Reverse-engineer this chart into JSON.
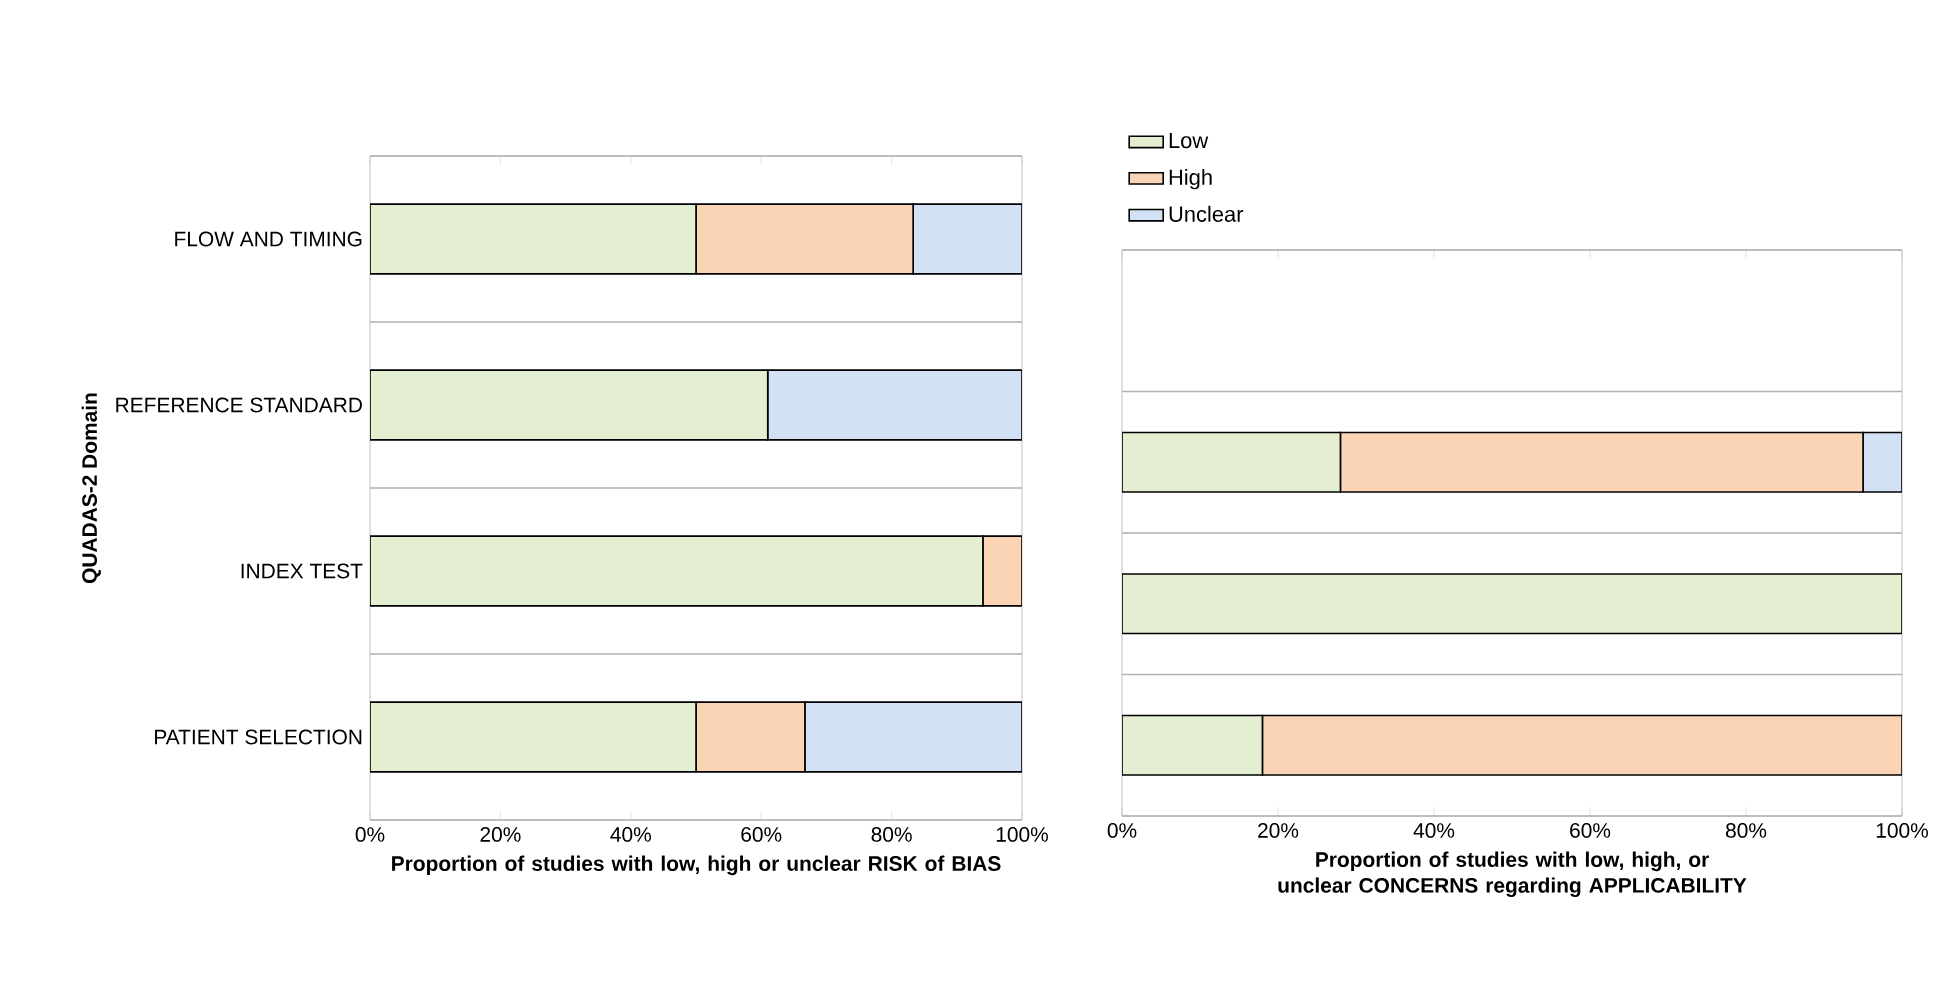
{
  "chart_data": [
    {
      "type": "bar",
      "orientation": "horizontal",
      "stacked": true,
      "grid": "y",
      "ylabel": "QUADAS-2 Domain",
      "xlabel": "Proportion of studies with low, high or unclear RISK of BIAS",
      "categories": [
        "FLOW AND TIMING",
        "REFERENCE STANDARD",
        "INDEX TEST",
        "PATIENT SELECTION"
      ],
      "xlim": [
        0,
        100
      ],
      "xticks": [
        {
          "value": 0,
          "label": "0%"
        },
        {
          "value": 20,
          "label": "20%"
        },
        {
          "value": 40,
          "label": "40%"
        },
        {
          "value": 60,
          "label": "60%"
        },
        {
          "value": 80,
          "label": "80%"
        },
        {
          "value": 100,
          "label": "100%"
        }
      ],
      "series": [
        {
          "color": "#e4eed0",
          "values": [
            50,
            61,
            94,
            50
          ]
        },
        {
          "color": "#fad4b4",
          "values": [
            33.3,
            0,
            6,
            16.7
          ]
        },
        {
          "color": "#d3e1f4",
          "values": [
            16.7,
            39,
            0,
            33.3
          ]
        }
      ]
    },
    {
      "type": "bar",
      "orientation": "horizontal",
      "stacked": true,
      "grid": "y",
      "legend": "top",
      "xlabel": "Proportion of studies with low, high, or unclear CONCERNS regarding APPLICABILITY",
      "categories": [
        null,
        null,
        null,
        null
      ],
      "xlim": [
        0,
        100
      ],
      "xticks": [
        {
          "value": 0,
          "label": "0%"
        },
        {
          "value": 20,
          "label": "20%"
        },
        {
          "value": 40,
          "label": "40%"
        },
        {
          "value": 60,
          "label": "60%"
        },
        {
          "value": 80,
          "label": "80%"
        },
        {
          "value": 100,
          "label": "100%"
        }
      ],
      "series": [
        {
          "name": "Low",
          "color": "#e4eed0",
          "values": [
            null,
            28,
            100,
            18
          ]
        },
        {
          "name": "High",
          "color": "#fad4b4",
          "values": [
            null,
            67,
            0,
            82
          ]
        },
        {
          "name": "Unclear",
          "color": "#d3e1f4",
          "values": [
            null,
            5,
            0,
            0
          ]
        }
      ]
    }
  ]
}
